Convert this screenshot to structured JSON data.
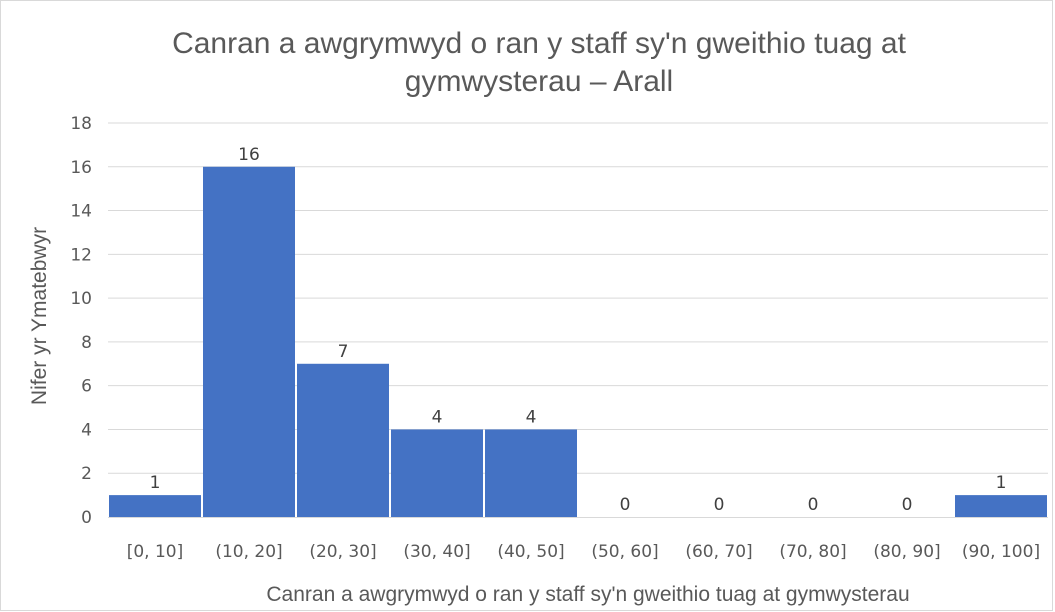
{
  "chart_data": {
    "type": "bar",
    "title_lines": [
      "Canran a awgrymwyd o ran y staff sy'n gweithio tuag at",
      "gymwysterau – Arall"
    ],
    "xlabel": "Canran a awgrymwyd o ran y staff sy'n gweithio tuag at gymwysterau",
    "ylabel": "Nifer yr Ymatebwyr",
    "categories": [
      "[0, 10]",
      "(10, 20]",
      "(20, 30]",
      "(30, 40]",
      "(40, 50]",
      "(50, 60]",
      "(60, 70]",
      "(70, 80]",
      "(80, 90]",
      "(90, 100]"
    ],
    "values": [
      1,
      16,
      7,
      4,
      4,
      0,
      0,
      0,
      0,
      1
    ],
    "ylim": [
      0,
      18
    ],
    "yticks": [
      0,
      2,
      4,
      6,
      8,
      10,
      12,
      14,
      16,
      18
    ],
    "grid": true,
    "legend": "none",
    "bar_color": "#4472c4",
    "grid_color": "#d9d9d9"
  }
}
